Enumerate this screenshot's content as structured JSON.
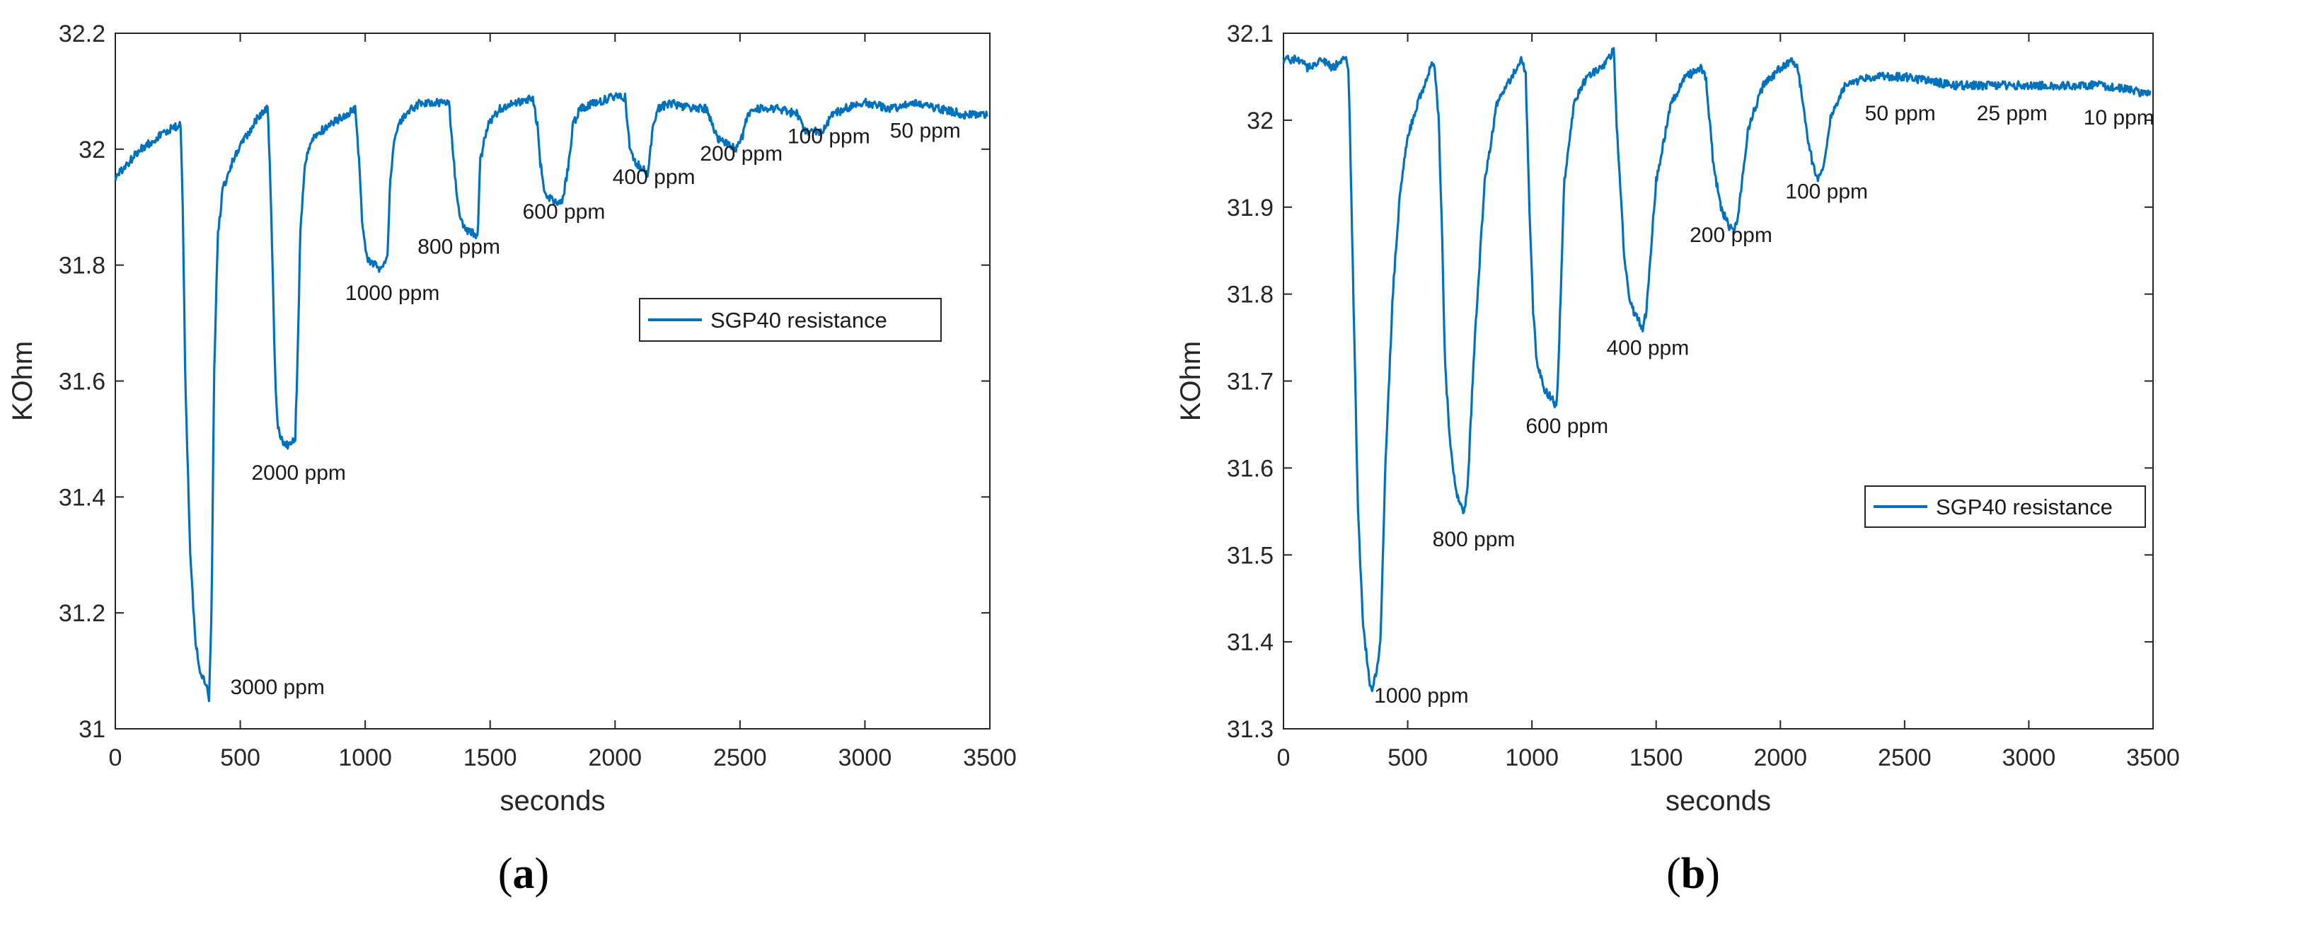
{
  "charts": [
    {
      "caption_open": "(",
      "caption_letter": "a",
      "caption_close": ")"
    },
    {
      "caption_open": "(",
      "caption_letter": "b",
      "caption_close": ")"
    }
  ],
  "chart_data": [
    {
      "type": "line",
      "title": "",
      "xlabel": "seconds",
      "ylabel": "KOhm",
      "xlim": [
        0,
        3500
      ],
      "ylim": [
        31,
        32.2
      ],
      "xticks": [
        0,
        500,
        1000,
        1500,
        2000,
        2500,
        3000,
        3500
      ],
      "xtick_labels": [
        "0",
        "500",
        "1000",
        "1500",
        "2000",
        "2500",
        "3000",
        "3500"
      ],
      "yticks": [
        31,
        31.2,
        31.4,
        31.6,
        31.8,
        32,
        32.2
      ],
      "ytick_labels": [
        "31",
        "31.2",
        "31.4",
        "31.6",
        "31.8",
        "32",
        "32.2"
      ],
      "grid": false,
      "legend": {
        "location": "center-right",
        "entries": [
          "SGP40 resistance"
        ]
      },
      "series": [
        {
          "name": "SGP40 resistance",
          "color": "#0072BD",
          "x": [
            0,
            100,
            200,
            250,
            262,
            270,
            280,
            300,
            320,
            340,
            360,
            375,
            385,
            395,
            410,
            430,
            470,
            520,
            580,
            610,
            620,
            630,
            640,
            650,
            665,
            680,
            700,
            720,
            730,
            740,
            760,
            790,
            850,
            920,
            960,
            975,
            990,
            1010,
            1040,
            1070,
            1090,
            1100,
            1120,
            1160,
            1220,
            1290,
            1335,
            1350,
            1365,
            1380,
            1400,
            1420,
            1450,
            1460,
            1490,
            1540,
            1610,
            1670,
            1690,
            1700,
            1715,
            1730,
            1760,
            1790,
            1820,
            1830,
            1860,
            1920,
            1990,
            2040,
            2050,
            2060,
            2080,
            2100,
            2130,
            2150,
            2170,
            2220,
            2300,
            2370,
            2390,
            2410,
            2450,
            2480,
            2510,
            2530,
            2580,
            2650,
            2730,
            2760,
            2790,
            2830,
            2870,
            2920,
            3000,
            3100,
            3200,
            3300,
            3400,
            3490
          ],
          "y": [
            31.95,
            32.0,
            32.03,
            32.04,
            32.04,
            31.9,
            31.6,
            31.3,
            31.15,
            31.1,
            31.08,
            31.05,
            31.2,
            31.6,
            31.85,
            31.93,
            31.98,
            32.02,
            32.06,
            32.07,
            31.95,
            31.78,
            31.6,
            31.52,
            31.5,
            31.49,
            31.49,
            31.5,
            31.65,
            31.85,
            31.98,
            32.02,
            32.04,
            32.06,
            32.07,
            31.98,
            31.86,
            31.81,
            31.8,
            31.79,
            31.82,
            31.95,
            32.03,
            32.06,
            32.08,
            32.08,
            32.08,
            32.0,
            31.93,
            31.88,
            31.86,
            31.86,
            31.85,
            31.98,
            32.04,
            32.07,
            32.08,
            32.09,
            32.04,
            31.98,
            31.93,
            31.92,
            31.91,
            31.91,
            31.99,
            32.04,
            32.07,
            32.08,
            32.09,
            32.09,
            32.04,
            32.0,
            31.98,
            31.97,
            31.96,
            32.03,
            32.07,
            32.08,
            32.07,
            32.07,
            32.04,
            32.02,
            32.01,
            32.0,
            32.02,
            32.06,
            32.07,
            32.07,
            32.06,
            32.03,
            32.03,
            32.03,
            32.06,
            32.07,
            32.08,
            32.07,
            32.08,
            32.07,
            32.06,
            32.06
          ]
        }
      ],
      "annotations": [
        {
          "text": "3000 ppm",
          "x": 460,
          "y": 31.06
        },
        {
          "text": "2000 ppm",
          "x": 545,
          "y": 31.43
        },
        {
          "text": "1000 ppm",
          "x": 920,
          "y": 31.74
        },
        {
          "text": "800 ppm",
          "x": 1210,
          "y": 31.82
        },
        {
          "text": "600 ppm",
          "x": 1630,
          "y": 31.88
        },
        {
          "text": "400 ppm",
          "x": 1990,
          "y": 31.94
        },
        {
          "text": "200 ppm",
          "x": 2340,
          "y": 31.98
        },
        {
          "text": "100 ppm",
          "x": 2690,
          "y": 32.01
        },
        {
          "text": "50 ppm",
          "x": 3100,
          "y": 32.02
        }
      ]
    },
    {
      "type": "line",
      "title": "",
      "xlabel": "seconds",
      "ylabel": "KOhm",
      "xlim": [
        0,
        3500
      ],
      "ylim": [
        31.3,
        32.1
      ],
      "xticks": [
        0,
        500,
        1000,
        1500,
        2000,
        2500,
        3000,
        3500
      ],
      "xtick_labels": [
        "0",
        "500",
        "1000",
        "1500",
        "2000",
        "2500",
        "3000",
        "3500"
      ],
      "yticks": [
        31.3,
        31.4,
        31.5,
        31.6,
        31.7,
        31.8,
        31.9,
        32,
        32.1
      ],
      "ytick_labels": [
        "31.3",
        "31.4",
        "31.5",
        "31.6",
        "31.7",
        "31.8",
        "31.9",
        "32",
        "32.1"
      ],
      "grid": false,
      "legend": {
        "location": "lower-right",
        "entries": [
          "SGP40 resistance"
        ]
      },
      "series": [
        {
          "name": "SGP40 resistance",
          "color": "#0072BD",
          "x": [
            0,
            50,
            100,
            150,
            200,
            240,
            255,
            262,
            270,
            285,
            300,
            320,
            340,
            355,
            370,
            390,
            410,
            440,
            470,
            500,
            540,
            580,
            605,
            625,
            640,
            650,
            670,
            690,
            710,
            725,
            740,
            770,
            810,
            860,
            920,
            960,
            975,
            990,
            1005,
            1020,
            1050,
            1080,
            1100,
            1110,
            1130,
            1170,
            1220,
            1280,
            1330,
            1340,
            1355,
            1370,
            1390,
            1410,
            1430,
            1445,
            1460,
            1500,
            1560,
            1620,
            1680,
            1700,
            1715,
            1730,
            1760,
            1790,
            1810,
            1830,
            1870,
            1930,
            2000,
            2050,
            2070,
            2090,
            2110,
            2130,
            2150,
            2170,
            2200,
            2260,
            2350,
            2500,
            2700,
            2900,
            3100,
            3300,
            3490
          ],
          "y": [
            32.07,
            32.07,
            32.06,
            32.07,
            32.06,
            32.07,
            32.07,
            32.06,
            31.95,
            31.75,
            31.55,
            31.42,
            31.37,
            31.34,
            31.36,
            31.4,
            31.6,
            31.8,
            31.92,
            31.98,
            32.02,
            32.05,
            32.07,
            32.0,
            31.85,
            31.72,
            31.63,
            31.58,
            31.56,
            31.55,
            31.57,
            31.75,
            31.93,
            32.02,
            32.05,
            32.07,
            32.05,
            31.9,
            31.78,
            31.72,
            31.69,
            31.68,
            31.67,
            31.75,
            31.93,
            32.02,
            32.05,
            32.06,
            32.08,
            32.0,
            31.93,
            31.85,
            31.8,
            31.78,
            31.77,
            31.76,
            31.78,
            31.93,
            32.02,
            32.05,
            32.06,
            32.05,
            32.0,
            31.95,
            31.9,
            31.88,
            31.87,
            31.89,
            31.99,
            32.04,
            32.06,
            32.07,
            32.06,
            32.02,
            31.98,
            31.95,
            31.93,
            31.94,
            32.0,
            32.04,
            32.05,
            32.05,
            32.04,
            32.04,
            32.04,
            32.04,
            32.03
          ]
        }
      ],
      "annotations": [
        {
          "text": "1000 ppm",
          "x": 365,
          "y": 31.33
        },
        {
          "text": "800 ppm",
          "x": 600,
          "y": 31.51
        },
        {
          "text": "600 ppm",
          "x": 975,
          "y": 31.64
        },
        {
          "text": "400 ppm",
          "x": 1300,
          "y": 31.73
        },
        {
          "text": "200 ppm",
          "x": 1635,
          "y": 31.86
        },
        {
          "text": "100 ppm",
          "x": 2020,
          "y": 31.91
        },
        {
          "text": "50 ppm",
          "x": 2340,
          "y": 32.0
        },
        {
          "text": "25 ppm",
          "x": 2790,
          "y": 32.0
        },
        {
          "text": "10 ppm",
          "x": 3220,
          "y": 31.995
        }
      ]
    }
  ]
}
